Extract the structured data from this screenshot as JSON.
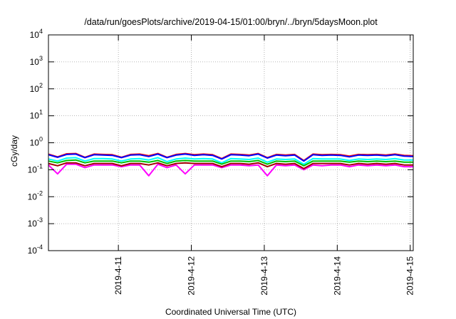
{
  "chart_data": {
    "type": "line",
    "title": "/data/run/goesPlots/archive/2019-04-15/01:00/bryn/../bryn/5daysMoon.plot",
    "xlabel": "Coordinated Universal Time (UTC)",
    "ylabel": "cGy/day",
    "yscale": "log",
    "ylim": [
      0.0001,
      10000
    ],
    "xlim": [
      "2019-04-10 01:00",
      "2019-04-15 01:00"
    ],
    "grid": true,
    "legend": "none",
    "y_ticks": [
      {
        "value": 0.0001,
        "base": "10",
        "exp": "-4"
      },
      {
        "value": 0.001,
        "base": "10",
        "exp": "-3"
      },
      {
        "value": 0.01,
        "base": "10",
        "exp": "-2"
      },
      {
        "value": 0.1,
        "base": "10",
        "exp": "-1"
      },
      {
        "value": 1,
        "base": "10",
        "exp": "0"
      },
      {
        "value": 10,
        "base": "10",
        "exp": "1"
      },
      {
        "value": 100,
        "base": "10",
        "exp": "2"
      },
      {
        "value": 1000,
        "base": "10",
        "exp": "3"
      },
      {
        "value": 10000,
        "base": "10",
        "exp": "4"
      }
    ],
    "x_ticks": [
      {
        "date": "2019-04-11 00:00",
        "label": "2019-4-11"
      },
      {
        "date": "2019-04-12 00:00",
        "label": "2019-4-12"
      },
      {
        "date": "2019-04-13 00:00",
        "label": "2019-4-13"
      },
      {
        "date": "2019-04-14 00:00",
        "label": "2019-4-14"
      },
      {
        "date": "2019-04-15 00:00",
        "label": "2019-4-15"
      }
    ],
    "x_dates": [
      "2019-04-10 01:00",
      "2019-04-10 04:00",
      "2019-04-10 07:00",
      "2019-04-10 10:00",
      "2019-04-10 13:00",
      "2019-04-10 16:00",
      "2019-04-10 19:00",
      "2019-04-10 22:00",
      "2019-04-11 01:00",
      "2019-04-11 04:00",
      "2019-04-11 07:00",
      "2019-04-11 10:00",
      "2019-04-11 13:00",
      "2019-04-11 16:00",
      "2019-04-11 19:00",
      "2019-04-11 22:00",
      "2019-04-12 01:00",
      "2019-04-12 04:00",
      "2019-04-12 07:00",
      "2019-04-12 10:00",
      "2019-04-12 13:00",
      "2019-04-12 16:00",
      "2019-04-12 19:00",
      "2019-04-12 22:00",
      "2019-04-13 01:00",
      "2019-04-13 04:00",
      "2019-04-13 07:00",
      "2019-04-13 10:00",
      "2019-04-13 13:00",
      "2019-04-13 16:00",
      "2019-04-13 19:00",
      "2019-04-13 22:00",
      "2019-04-14 01:00",
      "2019-04-14 04:00",
      "2019-04-14 07:00",
      "2019-04-14 10:00",
      "2019-04-14 13:00",
      "2019-04-14 16:00",
      "2019-04-14 19:00",
      "2019-04-14 22:00",
      "2019-04-15 01:00"
    ],
    "series": [
      {
        "color": "#ff0000",
        "values": [
          0.38,
          0.3,
          0.39,
          0.4,
          0.29,
          0.38,
          0.37,
          0.36,
          0.29,
          0.37,
          0.38,
          0.33,
          0.4,
          0.29,
          0.37,
          0.4,
          0.36,
          0.38,
          0.36,
          0.26,
          0.38,
          0.37,
          0.35,
          0.4,
          0.28,
          0.37,
          0.35,
          0.37,
          0.22,
          0.38,
          0.36,
          0.37,
          0.36,
          0.32,
          0.37,
          0.36,
          0.37,
          0.35,
          0.38,
          0.34,
          0.33
        ]
      },
      {
        "color": "#0000ff",
        "values": [
          0.36,
          0.29,
          0.37,
          0.38,
          0.28,
          0.36,
          0.35,
          0.34,
          0.28,
          0.35,
          0.36,
          0.31,
          0.38,
          0.28,
          0.35,
          0.38,
          0.34,
          0.36,
          0.34,
          0.25,
          0.36,
          0.35,
          0.33,
          0.38,
          0.27,
          0.35,
          0.33,
          0.35,
          0.21,
          0.36,
          0.34,
          0.35,
          0.34,
          0.3,
          0.35,
          0.34,
          0.35,
          0.33,
          0.36,
          0.32,
          0.31
        ]
      },
      {
        "color": "#00ffff",
        "values": [
          0.25,
          0.21,
          0.27,
          0.28,
          0.21,
          0.26,
          0.26,
          0.25,
          0.21,
          0.25,
          0.26,
          0.23,
          0.28,
          0.2,
          0.25,
          0.27,
          0.25,
          0.26,
          0.25,
          0.18,
          0.26,
          0.25,
          0.24,
          0.27,
          0.19,
          0.25,
          0.24,
          0.25,
          0.16,
          0.26,
          0.25,
          0.25,
          0.25,
          0.22,
          0.25,
          0.24,
          0.25,
          0.24,
          0.26,
          0.23,
          0.23
        ]
      },
      {
        "color": "#00c000",
        "values": [
          0.21,
          0.18,
          0.22,
          0.23,
          0.18,
          0.21,
          0.21,
          0.21,
          0.18,
          0.21,
          0.21,
          0.19,
          0.22,
          0.17,
          0.21,
          0.22,
          0.21,
          0.21,
          0.21,
          0.16,
          0.21,
          0.21,
          0.2,
          0.22,
          0.16,
          0.21,
          0.2,
          0.21,
          0.14,
          0.21,
          0.21,
          0.21,
          0.21,
          0.19,
          0.21,
          0.2,
          0.21,
          0.2,
          0.21,
          0.19,
          0.19
        ]
      },
      {
        "color": "#ff00ff",
        "values": [
          0.15,
          0.07,
          0.16,
          0.16,
          0.12,
          0.15,
          0.15,
          0.15,
          0.13,
          0.15,
          0.15,
          0.06,
          0.16,
          0.12,
          0.15,
          0.07,
          0.15,
          0.15,
          0.15,
          0.12,
          0.15,
          0.15,
          0.14,
          0.15,
          0.06,
          0.15,
          0.14,
          0.15,
          0.1,
          0.15,
          0.14,
          0.15,
          0.15,
          0.13,
          0.15,
          0.14,
          0.15,
          0.14,
          0.15,
          0.13,
          0.13
        ]
      },
      {
        "color": "#a00000",
        "values": [
          0.17,
          0.14,
          0.18,
          0.18,
          0.14,
          0.17,
          0.17,
          0.17,
          0.14,
          0.17,
          0.17,
          0.15,
          0.18,
          0.14,
          0.17,
          0.18,
          0.17,
          0.17,
          0.17,
          0.13,
          0.17,
          0.17,
          0.16,
          0.18,
          0.13,
          0.17,
          0.16,
          0.17,
          0.11,
          0.17,
          0.17,
          0.17,
          0.17,
          0.15,
          0.17,
          0.16,
          0.17,
          0.16,
          0.17,
          0.15,
          0.15
        ]
      }
    ]
  }
}
